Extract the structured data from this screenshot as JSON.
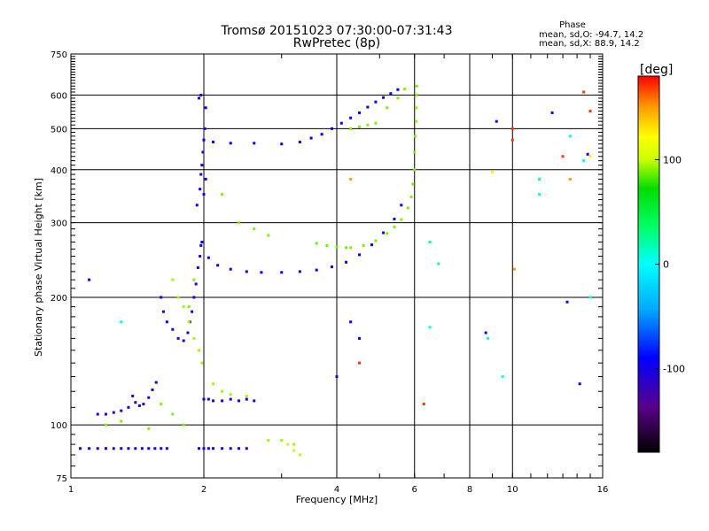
{
  "chart_data": {
    "type": "scatter",
    "title": "Tromsø 20151023 07:30:00-07:31:43",
    "subtitle": "RwPretec (8p)",
    "xlabel": "Frequency [MHz]",
    "ylabel": "Stationary phase Virtual Height [km]",
    "xscale": "log",
    "yscale": "log",
    "xlim": [
      1,
      16
    ],
    "ylim": [
      75,
      750
    ],
    "x_ticks": [
      1,
      2,
      4,
      6,
      8,
      10,
      16
    ],
    "y_ticks": [
      75,
      100,
      200,
      300,
      400,
      500,
      600,
      750
    ],
    "stats": {
      "heading": "Phase",
      "line_O": "mean, sd,O: -94.7, 14.2",
      "line_X": "mean, sd,X: 88.9, 14.2"
    },
    "colorbar": {
      "label": "[deg]",
      "ticks": [
        100,
        0,
        -100
      ],
      "range": [
        -180,
        180
      ]
    },
    "series": [
      {
        "phase": -95,
        "x": [
          1.97,
          2.05,
          2.15,
          2.3,
          2.5,
          2.7,
          3.0,
          3.3,
          3.6,
          3.9,
          4.2,
          4.5,
          4.8,
          5.1,
          5.4,
          5.6
        ],
        "y": [
          265,
          248,
          238,
          233,
          230,
          229,
          229,
          230,
          232,
          236,
          242,
          252,
          266,
          284,
          306,
          330
        ]
      },
      {
        "phase": -92,
        "x": [
          2.0,
          2.1,
          2.3,
          2.6,
          3.0,
          3.3,
          3.5,
          3.7,
          3.9,
          4.1,
          4.3,
          4.5,
          4.7,
          4.9,
          5.1,
          5.3,
          5.5
        ],
        "y": [
          470,
          465,
          462,
          462,
          460,
          465,
          475,
          485,
          500,
          515,
          530,
          545,
          562,
          578,
          592,
          605,
          618
        ]
      },
      {
        "phase": -100,
        "x": [
          1.93,
          1.96,
          1.97,
          1.98,
          1.99,
          2.0,
          2.01,
          2.02,
          1.95,
          1.97,
          2.0,
          2.02
        ],
        "y": [
          330,
          360,
          390,
          410,
          440,
          470,
          500,
          560,
          590,
          600,
          350,
          380
        ]
      },
      {
        "phase": -100,
        "x": [
          1.6,
          1.62,
          1.65,
          1.7,
          1.75,
          1.8,
          1.84,
          1.86,
          1.88,
          1.9,
          1.92,
          1.94,
          1.96,
          1.98
        ],
        "y": [
          200,
          185,
          175,
          168,
          160,
          158,
          165,
          175,
          185,
          200,
          215,
          235,
          250,
          270
        ]
      },
      {
        "phase": -110,
        "x": [
          1.38,
          1.4,
          1.43,
          1.46,
          1.5,
          1.53,
          1.56
        ],
        "y": [
          117,
          113,
          111,
          112,
          116,
          121,
          126
        ]
      },
      {
        "phase": -98,
        "x": [
          1.05,
          1.1,
          1.15,
          1.2,
          1.25,
          1.3,
          1.35,
          1.4,
          1.45,
          1.5,
          1.55,
          1.6,
          1.65,
          1.95,
          2.0,
          2.05,
          2.1,
          2.2,
          2.3,
          2.4,
          2.5
        ],
        "y": [
          88,
          88,
          88,
          88,
          88,
          88,
          88,
          88,
          88,
          88,
          88,
          88,
          88,
          88,
          88,
          88,
          88,
          88,
          88,
          88,
          88
        ]
      },
      {
        "phase": -100,
        "x": [
          2.0,
          2.05,
          2.1,
          2.2,
          2.3,
          2.4,
          2.5,
          2.6
        ],
        "y": [
          115,
          115,
          114,
          114,
          115,
          114,
          115,
          114
        ]
      },
      {
        "phase": -105,
        "x": [
          1.15,
          1.2,
          1.25,
          1.3,
          1.35
        ],
        "y": [
          106,
          106,
          107,
          108,
          110
        ]
      },
      {
        "phase": 90,
        "x": [
          4.3,
          4.6,
          4.9,
          5.2,
          5.4,
          5.6,
          5.8,
          5.9,
          5.95,
          6.0,
          6.0,
          6.02,
          6.05,
          6.05,
          6.06,
          6.07
        ],
        "y": [
          262,
          265,
          272,
          283,
          293,
          305,
          325,
          345,
          370,
          400,
          440,
          480,
          520,
          560,
          600,
          630
        ]
      },
      {
        "phase": 88,
        "x": [
          3.6,
          3.8,
          4.0,
          4.2
        ],
        "y": [
          268,
          265,
          263,
          262
        ]
      },
      {
        "phase": 90,
        "x": [
          4.3,
          4.5,
          4.7,
          4.9,
          5.2,
          5.5,
          5.7
        ],
        "y": [
          500,
          505,
          510,
          515,
          560,
          590,
          620
        ]
      },
      {
        "phase": 95,
        "x": [
          1.7,
          1.75,
          1.8,
          1.85,
          1.9,
          1.95,
          1.98,
          2.1,
          2.2,
          2.3,
          2.5,
          2.8,
          3.0,
          3.2
        ],
        "y": [
          220,
          200,
          190,
          175,
          160,
          150,
          140,
          125,
          120,
          118,
          117,
          92,
          92,
          90
        ]
      },
      {
        "phase": 90,
        "x": [
          1.2,
          1.3,
          1.5,
          1.6,
          1.7,
          1.8,
          1.85,
          1.9,
          2.2,
          2.4,
          2.6,
          2.8
        ],
        "y": [
          100,
          102,
          98,
          112,
          106,
          100,
          190,
          220,
          350,
          300,
          290,
          280
        ]
      },
      {
        "phase": 100,
        "x": [
          3.2,
          3.1,
          3.3
        ],
        "y": [
          87,
          90,
          85
        ]
      },
      {
        "phase": 0,
        "x": [
          1.3,
          4.5,
          6.5,
          8.8,
          9.5,
          11.5,
          13.5,
          14.5,
          15.0
        ],
        "y": [
          175,
          160,
          170,
          160,
          130,
          350,
          480,
          420,
          200
        ]
      },
      {
        "phase": -100,
        "x": [
          4.0,
          4.3,
          4.5,
          8.7,
          9.2,
          12.3,
          13.3,
          14.2,
          14.8,
          1.1
        ],
        "y": [
          130,
          175,
          160,
          165,
          520,
          545,
          195,
          125,
          435,
          220
        ]
      },
      {
        "phase": 170,
        "x": [
          4.5,
          6.3,
          10.0,
          10.0,
          13.0,
          14.5,
          15.0
        ],
        "y": [
          140,
          112,
          500,
          470,
          430,
          610,
          550
        ]
      },
      {
        "phase": 150,
        "x": [
          10.1,
          4.3,
          13.5
        ],
        "y": [
          233,
          380,
          380
        ]
      },
      {
        "phase": 20,
        "x": [
          6.5,
          6.8,
          11.5
        ],
        "y": [
          270,
          240,
          380
        ]
      },
      {
        "phase": 125,
        "x": [
          9.0,
          15.0
        ],
        "y": [
          395,
          430
        ]
      }
    ]
  }
}
